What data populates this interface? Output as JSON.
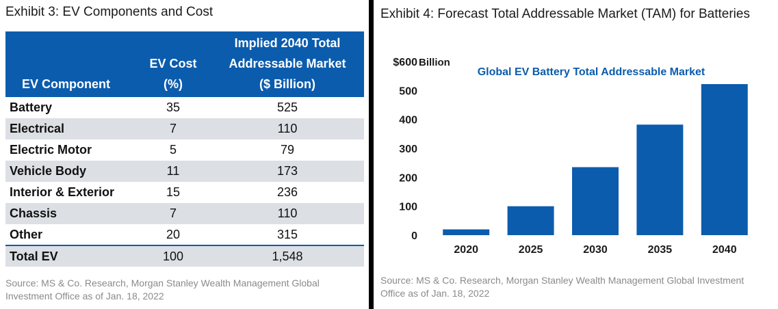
{
  "left": {
    "title": "Exhibit 3: EV Components and Cost",
    "table": {
      "headers": [
        "EV Component",
        "EV Cost (%)",
        "Implied 2040 Total Addressable Market ($ Billion)"
      ],
      "header_lines": [
        [
          "EV Component"
        ],
        [
          "EV Cost",
          "(%)"
        ],
        [
          "Implied 2040 Total",
          "Addressable Market",
          "($ Billion)"
        ]
      ],
      "rows": [
        [
          "Battery",
          "35",
          "525"
        ],
        [
          "Electrical",
          "7",
          "110"
        ],
        [
          "Electric Motor",
          "5",
          "79"
        ],
        [
          "Vehicle Body",
          "11",
          "173"
        ],
        [
          "Interior & Exterior",
          "15",
          "236"
        ],
        [
          "Chassis",
          "7",
          "110"
        ],
        [
          "Other",
          "20",
          "315"
        ],
        [
          "Total EV",
          "100",
          "1,548"
        ]
      ]
    },
    "source": "Source: MS & Co. Research, Morgan Stanley Wealth Management Global Investment Office as of Jan. 18, 2022"
  },
  "right": {
    "title": "Exhibit 4: Forecast Total Addressable Market (TAM) for Batteries",
    "source": "Source: MS & Co. Research, Morgan Stanley Wealth Management Global Investment Office as of Jan. 18, 2022"
  },
  "colors": {
    "accent": "#0b5cad",
    "band": "#dcdfe4",
    "source_text": "#8a8a8a"
  },
  "chart_data": [
    {
      "type": "table",
      "title": "Exhibit 3: EV Components and Cost",
      "columns": [
        "EV Component",
        "EV Cost (%)",
        "Implied 2040 Total Addressable Market ($ Billion)"
      ],
      "rows": [
        [
          "Battery",
          35,
          525
        ],
        [
          "Electrical",
          7,
          110
        ],
        [
          "Electric Motor",
          5,
          79
        ],
        [
          "Vehicle Body",
          11,
          173
        ],
        [
          "Interior & Exterior",
          15,
          236
        ],
        [
          "Chassis",
          7,
          110
        ],
        [
          "Other",
          20,
          315
        ],
        [
          "Total EV",
          100,
          1548
        ]
      ]
    },
    {
      "type": "bar",
      "title": "Exhibit 4: Forecast Total Addressable Market (TAM) for Batteries",
      "subtitle": "Global EV Battery Total Addressable Market",
      "categories": [
        "2020",
        "2025",
        "2030",
        "2035",
        "2040"
      ],
      "values": [
        20,
        100,
        235,
        382,
        522
      ],
      "ylim": [
        0,
        600
      ],
      "yticks": [
        "0",
        "100",
        "200",
        "300",
        "400",
        "500",
        "$600"
      ],
      "yunit": "Billion",
      "grid": false,
      "bar_color": "#0b5cad"
    }
  ]
}
